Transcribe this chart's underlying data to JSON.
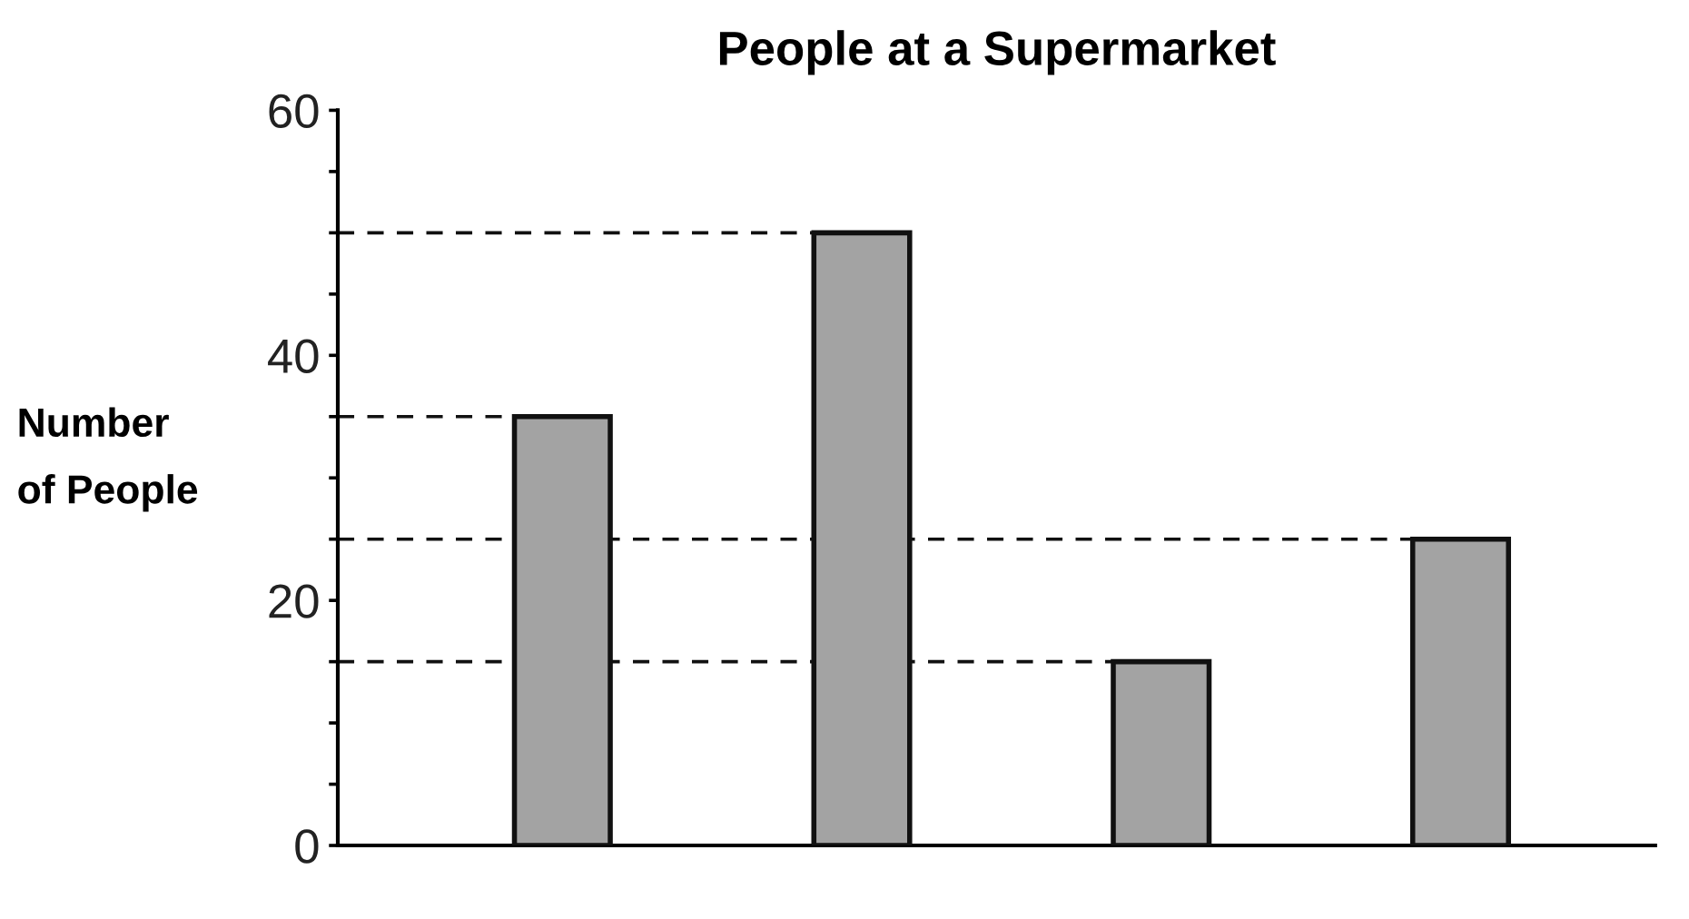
{
  "chart_data": {
    "type": "bar",
    "title": "People at a Supermarket",
    "ylabel": "Number\nof People",
    "categories": [
      null,
      null,
      null,
      null
    ],
    "values": [
      35,
      50,
      15,
      25
    ],
    "color": "#a3a3a3",
    "ylim": [
      0,
      60
    ],
    "yticks": [
      0,
      {
        "value": 5,
        "label": null
      },
      {
        "value": 10,
        "label": null
      },
      {
        "value": 15,
        "label": null
      },
      20,
      {
        "value": 25,
        "label": null
      },
      {
        "value": 30,
        "label": null
      },
      {
        "value": 35,
        "label": null
      },
      40,
      {
        "value": 45,
        "label": null
      },
      {
        "value": 50,
        "label": null
      },
      {
        "value": 55,
        "label": null
      },
      60
    ],
    "ref_lines": [
      {
        "axis": "y",
        "value": 50,
        "line_style": "dashed"
      },
      {
        "axis": "y",
        "value": 35,
        "line_style": "dashed"
      },
      {
        "axis": "y",
        "value": 25,
        "line_style": "dashed"
      },
      {
        "axis": "y",
        "value": 15,
        "line_style": "dashed"
      }
    ],
    "grid": false,
    "legend": false
  }
}
